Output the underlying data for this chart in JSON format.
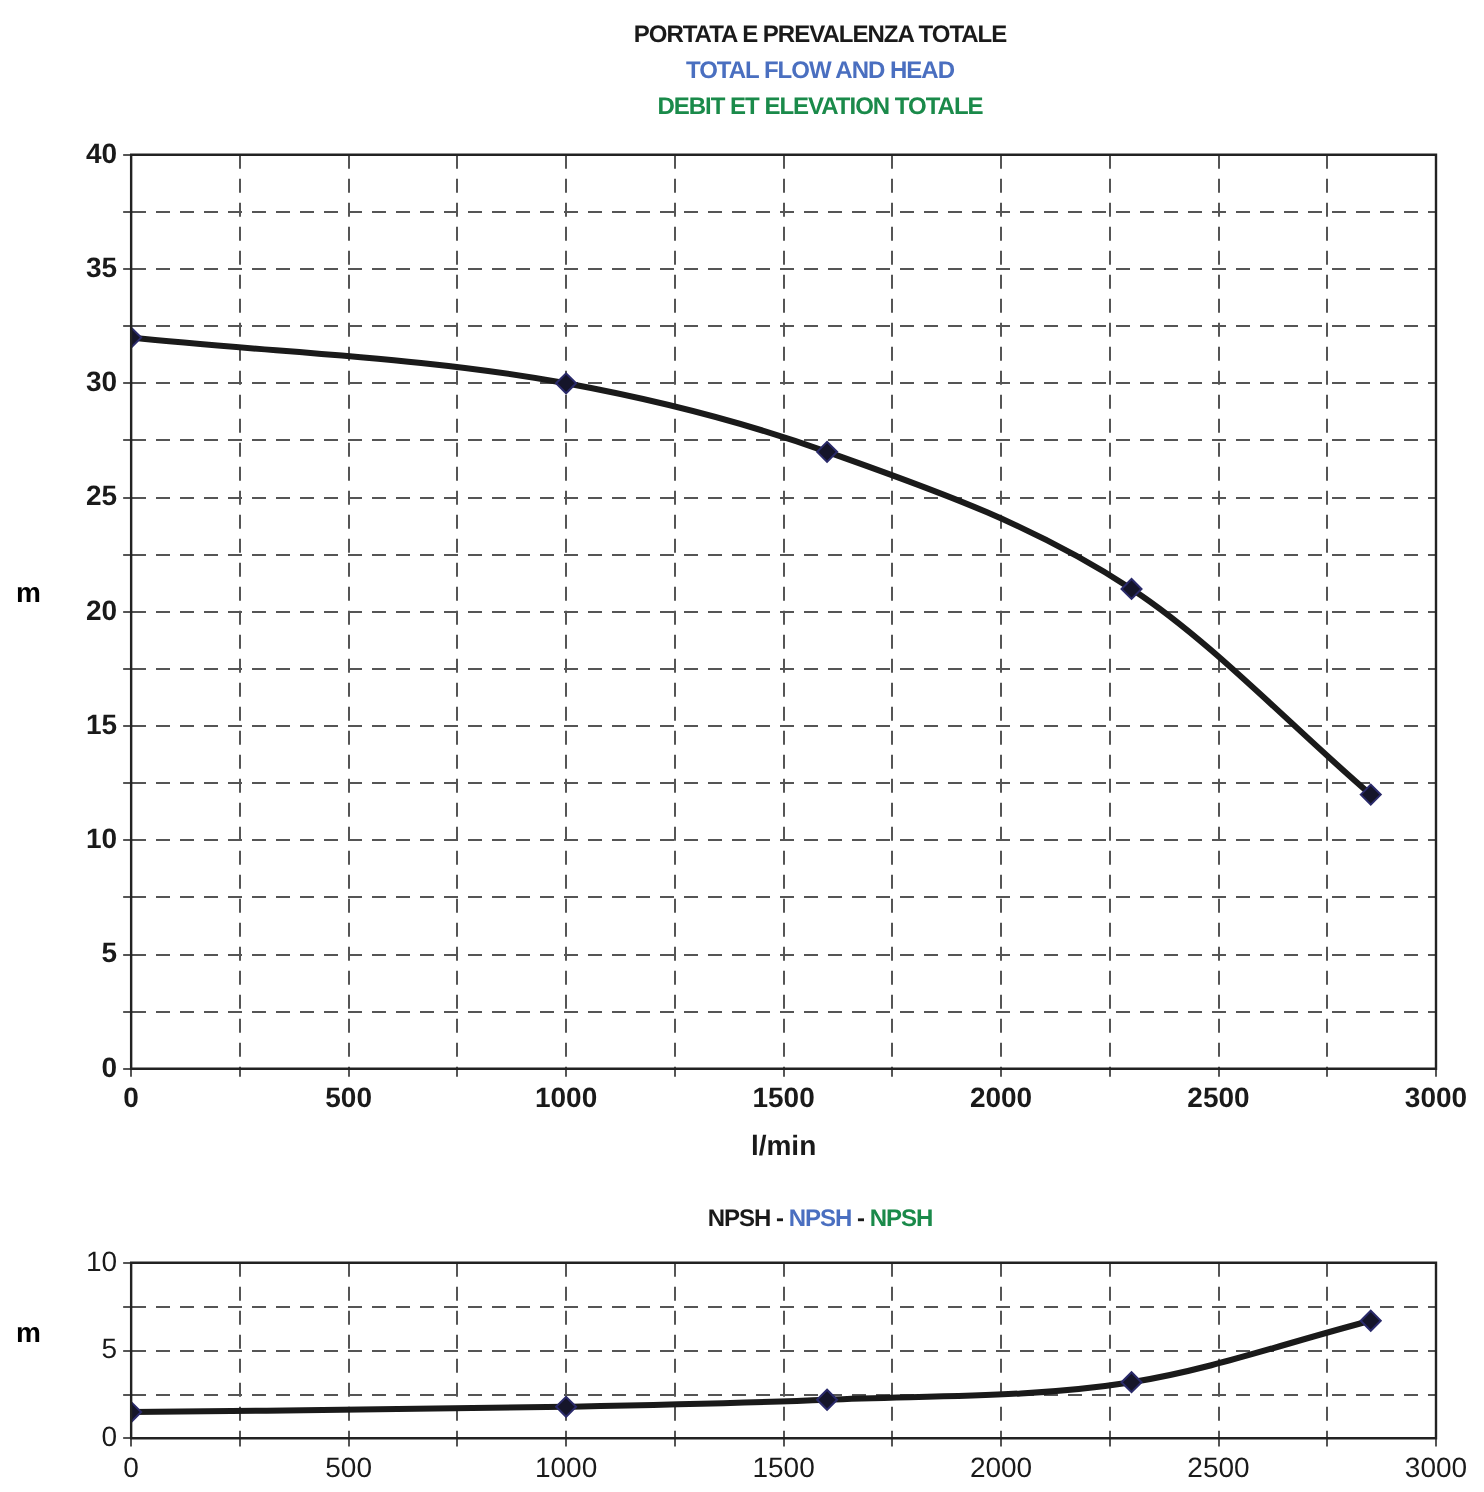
{
  "chart_data": [
    {
      "type": "line",
      "title": "PORTATA E PREVALENZA TOTALE",
      "subtitle": "TOTAL FLOW AND HEAD",
      "annotations": [
        "DEBIT ET ELEVATION TOTALE"
      ],
      "xlabel": "l/min",
      "ylabel": "m",
      "x": [
        0,
        1000,
        1600,
        2300,
        2850
      ],
      "series": [
        {
          "color": "#1a1a1a",
          "values": [
            32,
            30,
            27,
            21,
            12
          ]
        }
      ],
      "xlim": [
        0,
        3000
      ],
      "xticks": [
        0,
        {
          "value": 250,
          "label": null
        },
        500,
        {
          "value": 750,
          "label": null
        },
        1000,
        {
          "value": 1250,
          "label": null
        },
        1500,
        {
          "value": 1750,
          "label": null
        },
        2000,
        {
          "value": 2250,
          "label": null
        },
        2500,
        {
          "value": 2750,
          "label": null
        },
        3000
      ],
      "ylim": [
        0,
        40
      ],
      "yticks": [
        0,
        {
          "value": 2.5,
          "label": null
        },
        5,
        {
          "value": 7.5,
          "label": null
        },
        10,
        {
          "value": 12.5,
          "label": null
        },
        15,
        {
          "value": 17.5,
          "label": null
        },
        20,
        {
          "value": 22.5,
          "label": null
        },
        25,
        {
          "value": 27.5,
          "label": null
        },
        30,
        {
          "value": 32.5,
          "label": null
        },
        35,
        {
          "value": 37.5,
          "label": null
        },
        40
      ],
      "grid": true,
      "marker": "diamond",
      "line_style": "solid"
    },
    {
      "type": "line",
      "title": "NPSH - NPSH - NPSH",
      "ylabel": "m",
      "x": [
        0,
        1000,
        1600,
        2300,
        2850
      ],
      "series": [
        {
          "color": "#1a1a1a",
          "values": [
            1.5,
            1.8,
            2.2,
            3.2,
            6.7
          ]
        }
      ],
      "xlim": [
        0,
        3000
      ],
      "xticks": [
        0,
        {
          "value": 250,
          "label": null
        },
        500,
        {
          "value": 750,
          "label": null
        },
        1000,
        {
          "value": 1250,
          "label": null
        },
        1500,
        {
          "value": 1750,
          "label": null
        },
        2000,
        {
          "value": 2250,
          "label": null
        },
        2500,
        {
          "value": 2750,
          "label": null
        },
        3000
      ],
      "ylim": [
        0,
        10
      ],
      "yticks": [
        0,
        {
          "value": 2.5,
          "label": null
        },
        5,
        {
          "value": 7.5,
          "label": null
        },
        10
      ],
      "grid": true,
      "marker": "diamond",
      "line_style": "solid"
    }
  ]
}
